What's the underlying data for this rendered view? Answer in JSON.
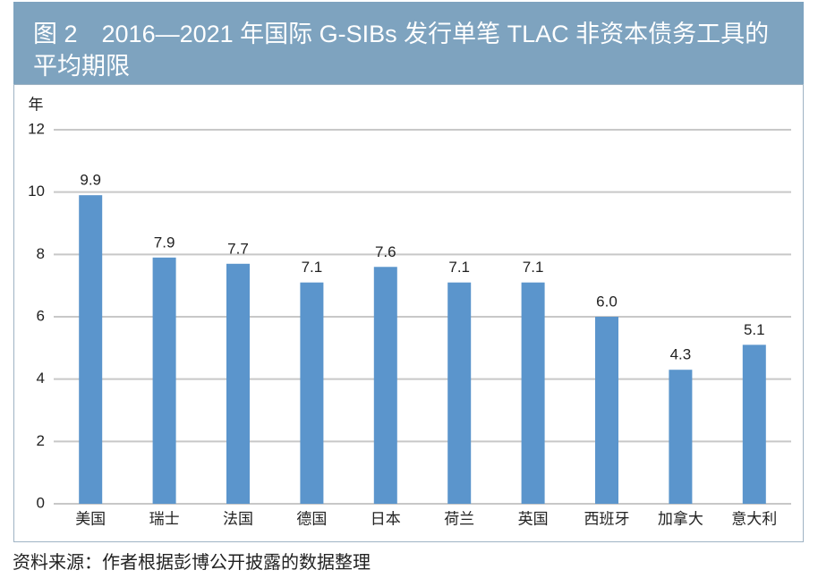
{
  "chart_data": {
    "type": "bar",
    "title": "图 2　2016—2021 年国际 G-SIBs 发行单笔 TLAC 非资本债务工具的平均期限",
    "y_axis_label": "年",
    "categories": [
      "美国",
      "瑞士",
      "法国",
      "德国",
      "日本",
      "荷兰",
      "英国",
      "西班牙",
      "加拿大",
      "意大利"
    ],
    "values": [
      9.9,
      7.9,
      7.7,
      7.1,
      7.6,
      7.1,
      7.1,
      6.0,
      4.3,
      5.1
    ],
    "value_labels": [
      "9.9",
      "7.9",
      "7.7",
      "7.1",
      "7.6",
      "7.1",
      "7.1",
      "6.0",
      "4.3",
      "5.1"
    ],
    "color": "#5b95cc",
    "ylim": [
      0,
      12
    ],
    "yticks": [
      0,
      2,
      4,
      6,
      8,
      10,
      12
    ],
    "grid": true,
    "source": "资料来源：作者根据彭博公开披露的数据整理"
  }
}
